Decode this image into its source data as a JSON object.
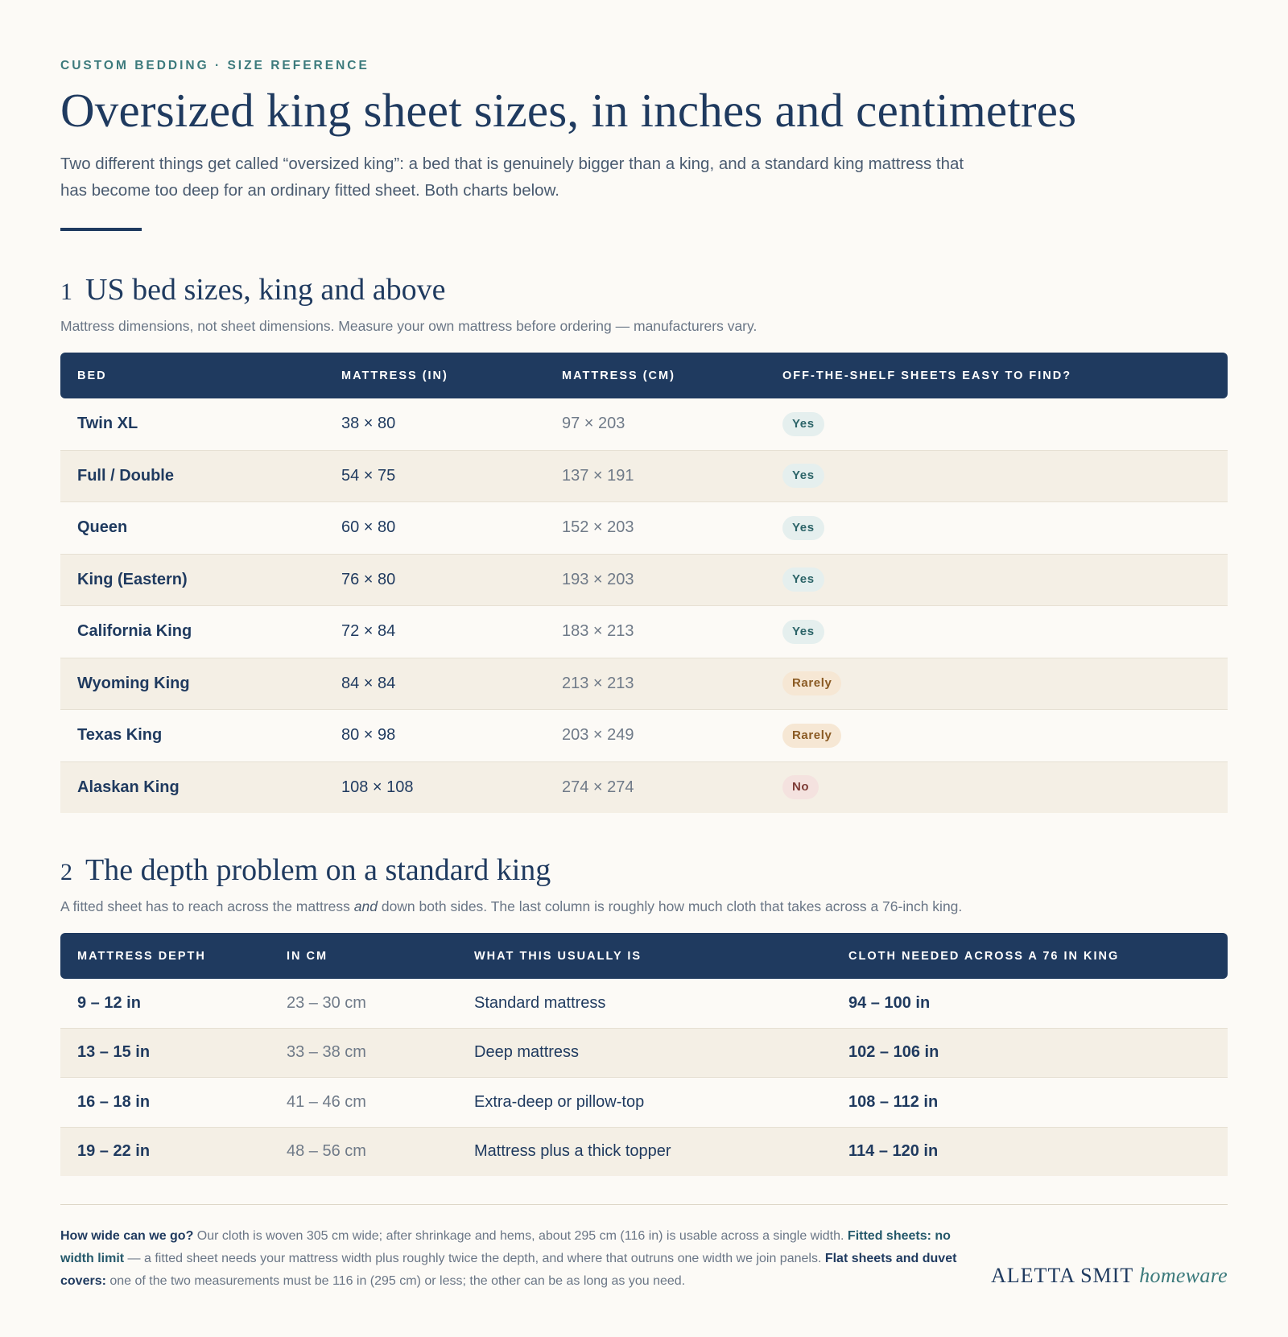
{
  "header": {
    "eyebrow": "CUSTOM BEDDING · SIZE REFERENCE",
    "title": "Oversized king sheet sizes, in inches and centimetres",
    "intro": "Two different things get called “oversized king”: a bed that is genuinely bigger than a king, and a standard king mattress that has become too deep for an ordinary fitted sheet. Both charts below."
  },
  "section1": {
    "number": "1",
    "title": "US bed sizes, king and above",
    "subtitle": "Mattress dimensions, not sheet dimensions. Measure your own mattress before ordering — manufacturers vary.",
    "columns": [
      "BED",
      "MATTRESS (IN)",
      "MATTRESS (CM)",
      "OFF-THE-SHELF SHEETS EASY TO FIND?"
    ],
    "rows": [
      {
        "bed": "Twin XL",
        "inches": "38 × 80",
        "cm": "97 × 203",
        "availability": "Yes"
      },
      {
        "bed": "Full / Double",
        "inches": "54 × 75",
        "cm": "137 × 191",
        "availability": "Yes"
      },
      {
        "bed": "Queen",
        "inches": "60 × 80",
        "cm": "152 × 203",
        "availability": "Yes"
      },
      {
        "bed": "King (Eastern)",
        "inches": "76 × 80",
        "cm": "193 × 203",
        "availability": "Yes"
      },
      {
        "bed": "California King",
        "inches": "72 × 84",
        "cm": "183 × 213",
        "availability": "Yes"
      },
      {
        "bed": "Wyoming King",
        "inches": "84 × 84",
        "cm": "213 × 213",
        "availability": "Rarely"
      },
      {
        "bed": "Texas King",
        "inches": "80 × 98",
        "cm": "203 × 249",
        "availability": "Rarely"
      },
      {
        "bed": "Alaskan King",
        "inches": "108 × 108",
        "cm": "274 × 274",
        "availability": "No"
      }
    ]
  },
  "section2": {
    "number": "2",
    "title": "The depth problem on a standard king",
    "subtitle_before": "A fitted sheet has to reach across the mattress ",
    "subtitle_em": "and",
    "subtitle_after": " down both sides. The last column is roughly how much cloth that takes across a 76-inch king.",
    "columns": [
      "MATTRESS DEPTH",
      "IN CM",
      "WHAT THIS USUALLY IS",
      "CLOTH NEEDED ACROSS A 76 IN KING"
    ],
    "rows": [
      {
        "depth": "9 – 12 in",
        "cm": "23 – 30 cm",
        "desc": "Standard mattress",
        "cloth": "94 – 100 in"
      },
      {
        "depth": "13 – 15 in",
        "cm": "33 – 38 cm",
        "desc": "Deep mattress",
        "cloth": "102 – 106 in"
      },
      {
        "depth": "16 – 18 in",
        "cm": "41 – 46 cm",
        "desc": "Extra-deep or pillow-top",
        "cloth": "108 – 112 in"
      },
      {
        "depth": "19 – 22 in",
        "cm": "48 – 56 cm",
        "desc": "Mattress plus a thick topper",
        "cloth": "114 – 120 in"
      }
    ]
  },
  "footer": {
    "q_label": "How wide can we go?",
    "q_text": " Our cloth is woven 305 cm wide; after shrinkage and hems, about 295 cm (116 in) is usable across a single width. ",
    "fitted_label": "Fitted sheets: no width limit",
    "fitted_text": " — a fitted sheet needs your mattress width plus roughly twice the depth, and where that outruns one width we join panels. ",
    "flat_label": "Flat sheets and duvet covers:",
    "flat_text": " one of the two measurements must be 116 in (295 cm) or less; the other can be as long as you need.",
    "brand_name": "ALETTA SMIT",
    "brand_script": "homeware"
  },
  "colors": {
    "navy": "#1f3a5f",
    "teal": "#3c7a7c",
    "background": "#fcfaf6",
    "band": "#f4efe5",
    "badge_yes": "#e5efee",
    "badge_rarely": "#f6e7d4",
    "badge_no": "#f4e2df"
  }
}
